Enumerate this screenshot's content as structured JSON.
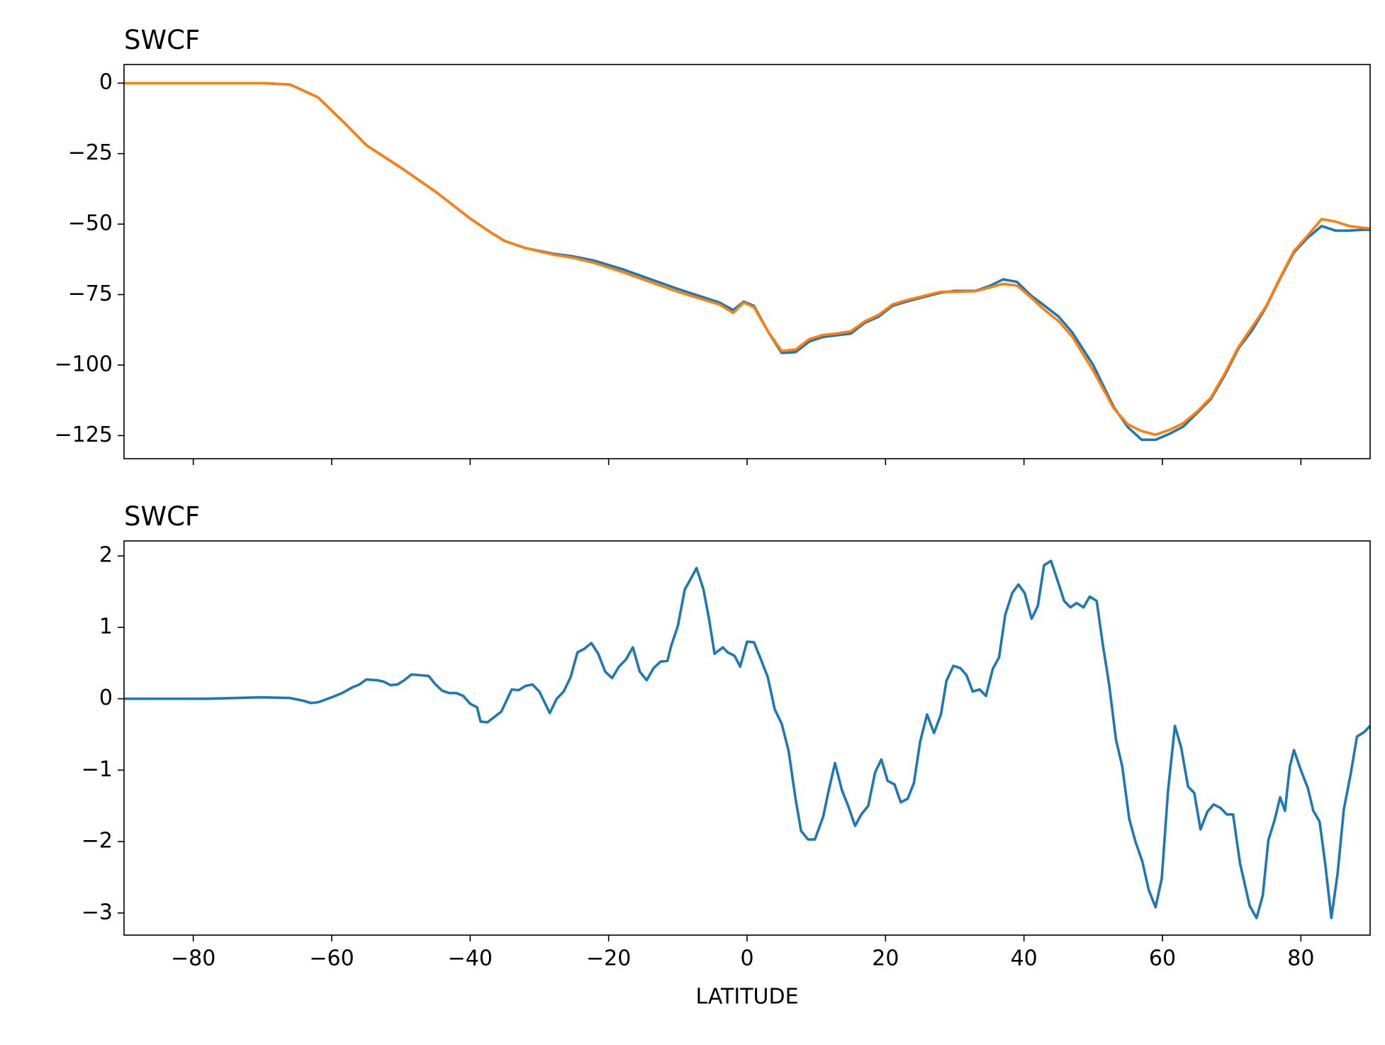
{
  "chart_data": [
    {
      "type": "line",
      "title": "SWCF",
      "x": [
        -90,
        -70,
        -66,
        -62,
        -58,
        -55,
        -50,
        -45,
        -40,
        -37,
        -35,
        -32,
        -28,
        -25,
        -22,
        -18,
        -14,
        -10,
        -6,
        -4,
        -2,
        -0.5,
        1,
        3,
        5,
        7,
        9,
        11,
        13,
        15,
        17,
        19,
        21,
        23,
        25,
        28,
        30,
        33,
        35,
        37,
        39,
        41,
        43,
        45,
        47,
        50,
        53,
        55,
        57,
        59,
        61,
        63,
        65,
        67,
        69,
        71,
        73,
        75,
        77,
        79,
        81,
        83,
        85,
        87,
        89,
        90
      ],
      "series": [
        {
          "color": "#1f77b4",
          "values": [
            0,
            0,
            -0.5,
            -5,
            -14.5,
            -22,
            -30,
            -38.5,
            -48,
            -53,
            -56,
            -58.5,
            -60.5,
            -61.5,
            -63,
            -66,
            -69.5,
            -73,
            -76.2,
            -77.8,
            -80.5,
            -77.5,
            -79,
            -88,
            -95.7,
            -95.4,
            -91.6,
            -90,
            -89.4,
            -88.8,
            -85,
            -82.8,
            -79,
            -77.5,
            -76.2,
            -74.3,
            -73.7,
            -73.7,
            -72,
            -69.6,
            -70.5,
            -75.3,
            -79,
            -82.8,
            -88.5,
            -100,
            -115,
            -122,
            -126.5,
            -126.5,
            -124.4,
            -121.8,
            -117,
            -112,
            -103.6,
            -94,
            -87.5,
            -79.3,
            -69.3,
            -60,
            -54.8,
            -50.7,
            -52.3,
            -52.3,
            -52,
            -52
          ]
        },
        {
          "color": "#ff7f0e",
          "values": [
            0,
            0,
            -0.5,
            -5,
            -14.5,
            -22,
            -30,
            -38.5,
            -48,
            -53,
            -56,
            -58.5,
            -60.8,
            -62,
            -63.8,
            -67,
            -70.5,
            -74,
            -77,
            -78.5,
            -81.5,
            -77.8,
            -79.5,
            -88,
            -95,
            -94.5,
            -90.8,
            -89.3,
            -88.8,
            -88,
            -84.5,
            -82.2,
            -78.5,
            -77,
            -75.8,
            -74,
            -74,
            -73.8,
            -72.5,
            -71.2,
            -71.8,
            -76,
            -80.5,
            -84.4,
            -90,
            -102,
            -115.5,
            -121,
            -123.4,
            -124.7,
            -123,
            -120.6,
            -116.5,
            -111.5,
            -103,
            -93.5,
            -86.3,
            -79,
            -69,
            -59.5,
            -54,
            -48.2,
            -49.1,
            -50.7,
            -51.3,
            -51.5
          ]
        }
      ],
      "xlim": [
        -90,
        90
      ],
      "xticks": [
        -80,
        -60,
        -40,
        -20,
        0,
        20,
        40,
        60,
        80
      ],
      "ylim": [
        -133.2,
        6.6
      ],
      "yticks": [
        0,
        {
          "value": -25,
          "label": "−25"
        },
        {
          "value": -50,
          "label": "−50"
        },
        {
          "value": -75,
          "label": "−75"
        },
        {
          "value": -100,
          "label": "−100"
        },
        {
          "value": -125,
          "label": "−125"
        }
      ]
    },
    {
      "type": "line",
      "title": "SWCF",
      "xlabel": "LATITUDE",
      "x": [
        -90,
        -78,
        -70,
        -66,
        -64,
        -63,
        -62,
        -60,
        -58.5,
        -57,
        -56,
        -55,
        -53.5,
        -52.5,
        -51.5,
        -50.5,
        -49.5,
        -48.5,
        -46,
        -45,
        -44,
        -43,
        -42,
        -41,
        -40,
        -39,
        -38.5,
        -37.5,
        -35.5,
        -34,
        -33,
        -32,
        -31,
        -30,
        -28.5,
        -27.5,
        -26.5,
        -25.5,
        -24.5,
        -23.5,
        -22.5,
        -21.5,
        -20.5,
        -19.5,
        -18.5,
        -17.5,
        -16.5,
        -15.5,
        -14.5,
        -13.5,
        -12.5,
        -11.5,
        -11,
        -10,
        -9,
        -8.3,
        -7.3,
        -6.3,
        -5.5,
        -4.7,
        -3.5,
        -2.8,
        -1.8,
        -1,
        0,
        1,
        2,
        3,
        4,
        5,
        6,
        7,
        7.8,
        8.8,
        9.8,
        11,
        11.8,
        12.7,
        13.7,
        14.6,
        15.6,
        16.5,
        17.5,
        18.5,
        19.4,
        20.3,
        21.3,
        22.2,
        23.2,
        24.1,
        25,
        26,
        27,
        28,
        28.8,
        29.8,
        30.8,
        31.7,
        32.6,
        33.6,
        34.5,
        35.5,
        36.4,
        37.3,
        38.3,
        39.2,
        40.1,
        41.1,
        42,
        42.9,
        43.9,
        44.8,
        45.8,
        46.7,
        47.6,
        48.6,
        49.5,
        50.5,
        51.4,
        52.3,
        53.3,
        54.2,
        55.2,
        56.1,
        57.1,
        58,
        59,
        59.9,
        60.8,
        61.8,
        62.7,
        63.7,
        64.6,
        65.5,
        66.5,
        67.4,
        68.4,
        69.3,
        70.2,
        71.2,
        72.6,
        73.6,
        74.5,
        75.3,
        76.2,
        77,
        77.7,
        78.4,
        79,
        80,
        81,
        81.8,
        82.7,
        83.5,
        84.4,
        85.3,
        86.2,
        87.2,
        88.1,
        89.1,
        90
      ],
      "series": [
        {
          "color": "#1f77b4",
          "values": [
            0,
            0,
            0.02,
            0.01,
            -0.03,
            -0.06,
            -0.05,
            0.02,
            0.08,
            0.16,
            0.2,
            0.27,
            0.26,
            0.24,
            0.19,
            0.2,
            0.26,
            0.34,
            0.32,
            0.2,
            0.11,
            0.08,
            0.08,
            0.04,
            -0.07,
            -0.12,
            -0.32,
            -0.33,
            -0.18,
            0.13,
            0.12,
            0.18,
            0.2,
            0.1,
            -0.2,
            0,
            0.1,
            0.3,
            0.65,
            0.7,
            0.78,
            0.63,
            0.38,
            0.29,
            0.45,
            0.55,
            0.72,
            0.38,
            0.26,
            0.43,
            0.52,
            0.53,
            0.73,
            1.02,
            1.53,
            1.65,
            1.83,
            1.53,
            1.12,
            0.63,
            0.72,
            0.65,
            0.6,
            0.45,
            0.8,
            0.79,
            0.55,
            0.3,
            -0.15,
            -0.35,
            -0.73,
            -1.4,
            -1.85,
            -1.97,
            -1.97,
            -1.65,
            -1.28,
            -0.9,
            -1.28,
            -1.5,
            -1.78,
            -1.62,
            -1.5,
            -1.03,
            -0.85,
            -1.15,
            -1.2,
            -1.45,
            -1.4,
            -1.18,
            -0.6,
            -0.22,
            -0.48,
            -0.22,
            0.25,
            0.46,
            0.43,
            0.33,
            0.1,
            0.13,
            0.04,
            0.42,
            0.58,
            1.18,
            1.48,
            1.6,
            1.48,
            1.12,
            1.3,
            1.87,
            1.93,
            1.67,
            1.37,
            1.28,
            1.34,
            1.28,
            1.43,
            1.37,
            0.75,
            0.2,
            -0.58,
            -0.95,
            -1.68,
            -2.0,
            -2.28,
            -2.67,
            -2.92,
            -2.52,
            -1.3,
            -0.38,
            -0.68,
            -1.23,
            -1.32,
            -1.83,
            -1.58,
            -1.48,
            -1.53,
            -1.62,
            -1.62,
            -2.3,
            -2.9,
            -3.07,
            -2.75,
            -1.98,
            -1.7,
            -1.38,
            -1.57,
            -0.95,
            -0.72,
            -1.0,
            -1.25,
            -1.57,
            -1.72,
            -2.3,
            -3.07,
            -2.45,
            -1.55,
            -1.05,
            -0.53,
            -0.47,
            -0.38
          ]
        }
      ],
      "xlim": [
        -90,
        90
      ],
      "xticks": [
        {
          "value": -80,
          "label": "−80"
        },
        {
          "value": -60,
          "label": "−60"
        },
        {
          "value": -40,
          "label": "−40"
        },
        {
          "value": -20,
          "label": "−20"
        },
        0,
        20,
        40,
        60,
        80
      ],
      "ylim": [
        -3.31,
        2.21
      ],
      "yticks": [
        2,
        1,
        0,
        {
          "value": -1,
          "label": "−1"
        },
        {
          "value": -2,
          "label": "−2"
        },
        {
          "value": -3,
          "label": "−3"
        }
      ]
    }
  ]
}
